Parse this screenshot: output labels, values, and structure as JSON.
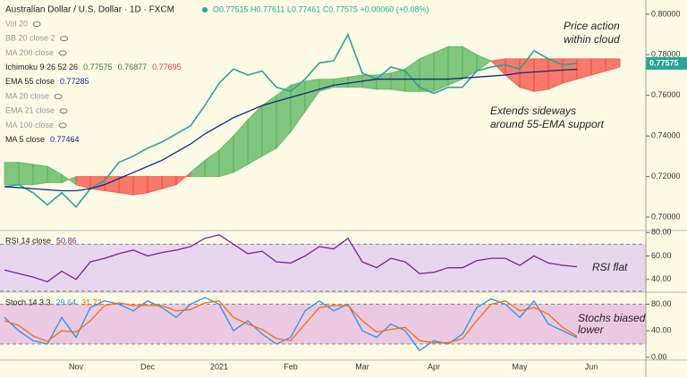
{
  "header": {
    "title": "Australian Dollar / U.S. Dollar · 1D · FXCM",
    "ohlc": "O0.77515 H0.77611 L0.77461 C0.77575 +0.00060 (+0.08%)"
  },
  "indicators": [
    {
      "label": "Vol 20"
    },
    {
      "label": "BB 20 close 2"
    },
    {
      "label": "MA 200 close"
    },
    {
      "label": "Ichimoku 9 26 52 26",
      "values": [
        "0.77575",
        "0.76877",
        "0.77695"
      ]
    },
    {
      "label": "EMA 55 close",
      "values": [
        "0.77285"
      ]
    },
    {
      "label": "MA 20 close"
    },
    {
      "label": "EMA 21 close"
    },
    {
      "label": "MA 100 close"
    },
    {
      "label": "MA 5 close",
      "values": [
        "0.77464"
      ]
    }
  ],
  "chart_data": [
    {
      "type": "line",
      "categories": [
        null,
        null,
        null,
        null,
        null,
        "Nov",
        null,
        null,
        null,
        null,
        "Dec",
        null,
        null,
        null,
        null,
        "2021",
        null,
        null,
        null,
        null,
        "Feb",
        null,
        null,
        null,
        null,
        "Mar",
        null,
        null,
        null,
        null,
        "Apr",
        null,
        null,
        null,
        null,
        null,
        "May",
        null,
        null,
        null,
        null,
        "Jun",
        null,
        null,
        null
      ],
      "series": [
        {
          "color": "#26a69a",
          "values": [
            0.715,
            0.716,
            0.712,
            0.706,
            0.712,
            0.705,
            0.714,
            0.718,
            0.727,
            0.73,
            0.734,
            0.737,
            0.741,
            0.745,
            0.755,
            0.766,
            0.773,
            0.77,
            0.772,
            0.764,
            0.762,
            0.768,
            0.776,
            0.777,
            0.79,
            0.771,
            0.768,
            0.774,
            0.772,
            0.764,
            0.761,
            0.764,
            0.764,
            0.772,
            0.774,
            0.775,
            0.773,
            0.782,
            0.778,
            0.775,
            0.77575,
            null,
            null,
            null,
            null
          ]
        },
        {
          "name": "EMA 55 close",
          "color": "#0d2a8a",
          "values": [
            0.715,
            0.7145,
            0.714,
            0.7135,
            0.713,
            0.713,
            0.714,
            0.716,
            0.719,
            0.722,
            0.725,
            0.728,
            0.732,
            0.736,
            0.741,
            0.745,
            0.749,
            0.752,
            0.755,
            0.757,
            0.759,
            0.761,
            0.763,
            0.765,
            0.766,
            0.767,
            0.768,
            0.768,
            0.768,
            0.768,
            0.768,
            0.768,
            0.7685,
            0.769,
            0.7695,
            0.77,
            0.771,
            0.7715,
            0.772,
            0.7725,
            0.77285,
            null,
            null,
            null,
            null
          ]
        }
      ],
      "cloud": {
        "up_color": "#4caf50",
        "down_color": "#f44336",
        "span_a": [
          0.727,
          0.727,
          0.726,
          0.725,
          0.721,
          0.716,
          0.714,
          0.713,
          0.712,
          0.711,
          0.712,
          0.714,
          0.716,
          0.722,
          0.728,
          0.733,
          0.74,
          0.748,
          0.755,
          0.76,
          0.765,
          0.767,
          0.768,
          0.768,
          0.769,
          0.77,
          0.77,
          0.771,
          0.773,
          0.778,
          0.781,
          0.784,
          0.784,
          0.78,
          0.777,
          0.77,
          0.764,
          0.762,
          0.763,
          0.766,
          0.768,
          0.77,
          0.772,
          0.774,
          null
        ],
        "span_b": [
          0.716,
          0.716,
          0.716,
          0.717,
          0.717,
          0.72,
          0.72,
          0.72,
          0.72,
          0.72,
          0.72,
          0.72,
          0.72,
          0.72,
          0.72,
          0.72,
          0.722,
          0.726,
          0.73,
          0.734,
          0.742,
          0.752,
          0.762,
          0.764,
          0.764,
          0.764,
          0.763,
          0.763,
          0.762,
          0.762,
          0.762,
          0.765,
          0.768,
          0.772,
          0.777,
          0.778,
          0.778,
          0.778,
          0.778,
          0.778,
          0.778,
          0.778,
          0.778,
          0.778,
          null
        ]
      },
      "ylim": [
        0.6934,
        0.807
      ],
      "yticks": [
        {
          "value": 0.8,
          "label": "0.80000"
        },
        {
          "value": 0.78,
          "label": "0.78000"
        },
        {
          "value": 0.76,
          "label": "0.76000"
        },
        {
          "value": 0.74,
          "label": "0.74000"
        },
        {
          "value": 0.72,
          "label": "0.72000"
        },
        {
          "value": 0.7,
          "label": "0.70000"
        }
      ],
      "last_price_label": "0.77575",
      "annotations": [
        "Price action",
        "within cloud",
        "Extends sideways",
        "around 55-EMA support"
      ]
    },
    {
      "type": "line",
      "title": "RSI 14 close",
      "value_label": "50.86",
      "series": [
        {
          "color": "#7b1fa2",
          "values": [
            48,
            45,
            42,
            38,
            47,
            40,
            55,
            58,
            62,
            65,
            60,
            63,
            65,
            68,
            75,
            78,
            70,
            62,
            64,
            55,
            54,
            60,
            68,
            66,
            75,
            55,
            50,
            58,
            55,
            45,
            46,
            50,
            50,
            56,
            58,
            58,
            52,
            60,
            54,
            52,
            50.86,
            null,
            null,
            null,
            null
          ]
        }
      ],
      "band": [
        30,
        70
      ],
      "band_color": "#e8d5ee",
      "ylim": [
        29.2,
        81.7
      ],
      "yticks": [
        {
          "value": 80,
          "label": "80.00"
        },
        {
          "value": 60,
          "label": "60.00"
        },
        {
          "value": 40,
          "label": "40.00"
        }
      ],
      "annotations": [
        "RSI flat"
      ]
    },
    {
      "type": "line",
      "title": "Stoch 14 3 3",
      "series": [
        {
          "color": "#2196f3",
          "value_label": "29.64",
          "values": [
            60,
            40,
            25,
            20,
            60,
            30,
            75,
            85,
            80,
            70,
            85,
            75,
            60,
            80,
            90,
            80,
            40,
            55,
            35,
            20,
            30,
            70,
            85,
            70,
            80,
            40,
            30,
            50,
            40,
            10,
            25,
            20,
            35,
            75,
            88,
            80,
            60,
            85,
            50,
            40,
            29.64,
            null,
            null,
            null,
            null
          ]
        },
        {
          "color": "#ff6d00",
          "value_label": "31.72",
          "values": [
            55,
            48,
            32,
            24,
            40,
            38,
            55,
            78,
            82,
            78,
            78,
            78,
            70,
            72,
            82,
            85,
            60,
            50,
            42,
            28,
            25,
            50,
            75,
            78,
            78,
            55,
            38,
            42,
            45,
            25,
            22,
            22,
            28,
            55,
            80,
            85,
            70,
            75,
            65,
            45,
            31.72,
            null,
            null,
            null,
            null
          ]
        }
      ],
      "band": [
        20,
        80
      ],
      "band_color": "#ecc9e3",
      "ylim": [
        -4.2,
        98.2
      ],
      "yticks": [
        {
          "value": 80,
          "label": "80.00"
        },
        {
          "value": 40,
          "label": "40.00"
        },
        {
          "value": 0,
          "label": "0.00"
        }
      ],
      "annotations": [
        "Stochs biased",
        "lower"
      ]
    }
  ]
}
